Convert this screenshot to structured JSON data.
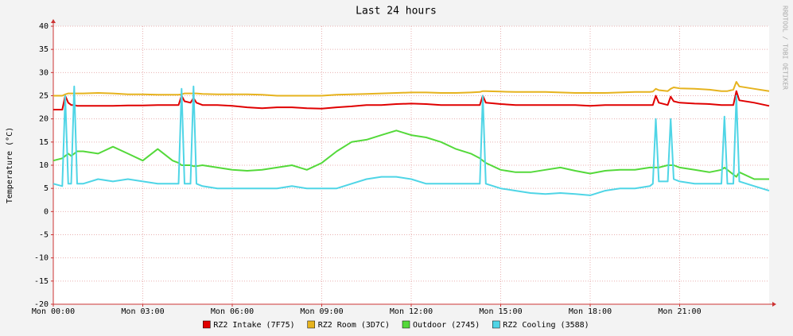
{
  "chart_data": {
    "type": "line",
    "title": "Last 24 hours",
    "y_label": "Temperature (°C)",
    "watermark": "RRDTOOL / TOBI OETIKER",
    "x": [
      0,
      0.3,
      0.4,
      0.5,
      0.6,
      0.7,
      0.8,
      1,
      1.5,
      2,
      2.5,
      3,
      3.5,
      4,
      4.2,
      4.3,
      4.4,
      4.6,
      4.7,
      4.8,
      5,
      5.5,
      6,
      6.5,
      7,
      7.5,
      8,
      8.5,
      9,
      9.5,
      10,
      10.5,
      11,
      11.5,
      12,
      12.5,
      13,
      13.5,
      14,
      14.3,
      14.4,
      14.5,
      15,
      15.5,
      16,
      16.5,
      17,
      17.5,
      18,
      18.5,
      19,
      19.5,
      20,
      20.1,
      20.2,
      20.3,
      20.6,
      20.7,
      20.8,
      21,
      21.5,
      22,
      22.4,
      22.5,
      22.6,
      22.8,
      22.9,
      23,
      23.5,
      24
    ],
    "series": [
      {
        "name": "RZ2 Intake (7F75)",
        "color": "#e00000",
        "values": [
          22,
          22,
          25,
          23.5,
          23,
          23,
          22.8,
          22.8,
          22.8,
          22.8,
          22.9,
          22.9,
          23,
          23,
          23,
          25,
          23.8,
          23.5,
          24.5,
          23.5,
          23,
          23,
          22.8,
          22.5,
          22.3,
          22.5,
          22.5,
          22.3,
          22.2,
          22.5,
          22.7,
          23,
          23,
          23.2,
          23.3,
          23.2,
          23,
          23,
          23,
          23,
          25,
          23.5,
          23.2,
          23,
          23,
          23,
          23,
          23,
          22.8,
          23,
          23,
          23,
          23,
          23,
          25,
          23.5,
          23,
          24.8,
          23.8,
          23.5,
          23.3,
          23.2,
          23,
          23,
          23,
          23,
          26,
          24,
          23.5,
          22.8
        ]
      },
      {
        "name": "RZ2 Room (3D7C)",
        "color": "#e6b31e",
        "values": [
          25,
          25,
          25.3,
          25.5,
          25.5,
          25.5,
          25.5,
          25.5,
          25.6,
          25.5,
          25.3,
          25.3,
          25.2,
          25.2,
          25.2,
          25.3,
          25.5,
          25.5,
          25.5,
          25.5,
          25.4,
          25.3,
          25.3,
          25.3,
          25.2,
          25,
          25,
          25,
          25,
          25.2,
          25.3,
          25.4,
          25.5,
          25.6,
          25.7,
          25.7,
          25.6,
          25.6,
          25.7,
          25.8,
          26,
          26,
          25.9,
          25.8,
          25.8,
          25.8,
          25.7,
          25.6,
          25.6,
          25.6,
          25.7,
          25.8,
          25.8,
          25.9,
          26.5,
          26.2,
          26,
          26.5,
          26.8,
          26.6,
          26.5,
          26.3,
          26,
          26,
          26,
          26.3,
          28,
          27,
          26.5,
          26
        ]
      },
      {
        "name": "Outdoor (2745)",
        "color": "#54d93a",
        "values": [
          11,
          11.5,
          12,
          12.5,
          12,
          12.5,
          13,
          13,
          12.5,
          14,
          12.5,
          11,
          13.5,
          11,
          10.5,
          10,
          10,
          10,
          9.8,
          9.8,
          10,
          9.5,
          9,
          8.8,
          9,
          9.5,
          10,
          9,
          10.5,
          13,
          15,
          15.5,
          16.5,
          17.5,
          16.5,
          16,
          15,
          13.5,
          12.5,
          11.5,
          11,
          10.5,
          9,
          8.5,
          8.5,
          9,
          9.5,
          8.8,
          8.2,
          8.8,
          9,
          9,
          9.5,
          9.5,
          9.5,
          9.5,
          10,
          10,
          10,
          9.5,
          9,
          8.5,
          9,
          9.5,
          9,
          8,
          7.5,
          8.5,
          7,
          7
        ]
      },
      {
        "name": "RZ2 Cooling (3588)",
        "color": "#4fd5e6",
        "values": [
          6,
          5.5,
          25,
          6,
          6,
          27,
          6,
          6,
          7,
          6.5,
          7,
          6.5,
          6,
          6,
          6,
          26.5,
          6,
          6,
          27,
          6,
          5.5,
          5,
          5,
          5,
          5,
          5,
          5.5,
          5,
          5,
          5,
          6,
          7,
          7.5,
          7.5,
          7,
          6,
          6,
          6,
          6,
          6,
          25,
          6,
          5,
          4.5,
          4,
          3.8,
          4,
          3.8,
          3.5,
          4.5,
          5,
          5,
          5.5,
          6,
          20,
          6.5,
          6.5,
          20,
          7,
          6.5,
          6,
          6,
          6,
          20.5,
          6,
          6,
          25,
          6.5,
          5.5,
          4.5
        ]
      }
    ],
    "xlim": [
      0,
      24
    ],
    "xticks": [
      {
        "value": 0,
        "label": "Mon 00:00"
      },
      {
        "value": 3,
        "label": "Mon 03:00"
      },
      {
        "value": 6,
        "label": "Mon 06:00"
      },
      {
        "value": 9,
        "label": "Mon 09:00"
      },
      {
        "value": 12,
        "label": "Mon 12:00"
      },
      {
        "value": 15,
        "label": "Mon 15:00"
      },
      {
        "value": 18,
        "label": "Mon 18:00"
      },
      {
        "value": 21,
        "label": "Mon 21:00"
      }
    ],
    "ylim": [
      -20,
      40
    ],
    "yticks": [
      -20,
      -15,
      -10,
      -5,
      0,
      5,
      10,
      15,
      20,
      25,
      30,
      35,
      40
    ],
    "grid": true
  }
}
